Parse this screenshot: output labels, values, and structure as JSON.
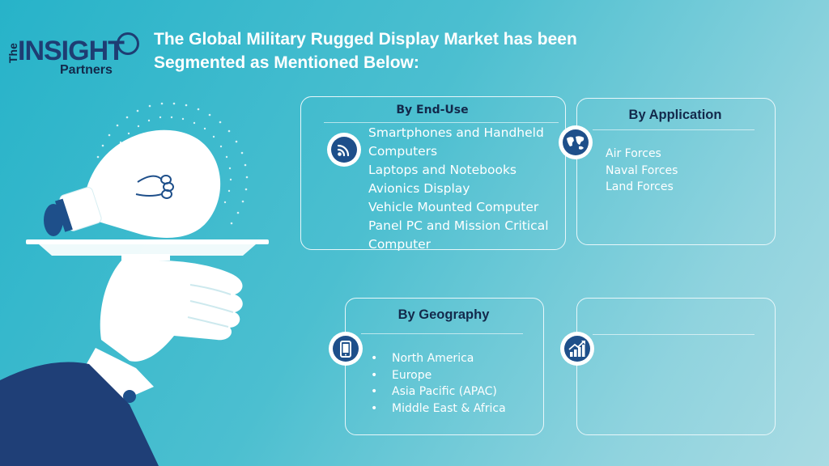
{
  "logo": {
    "the": "The",
    "insight": "INSIGHT",
    "partners": "Partners"
  },
  "title": "The Global Military Rugged Display Market has been Segmented as Mentioned Below:",
  "cards": {
    "end_use": {
      "heading": "By End-Use",
      "icon": "wifi-signal-icon",
      "items": [
        "Smartphones and Handheld Computers",
        "Laptops and Notebooks",
        "Avionics Display",
        "Vehicle Mounted Computer",
        "Panel PC and Mission Critical Computer"
      ]
    },
    "application": {
      "heading": "By Application",
      "icon": "globe-map-icon",
      "items": [
        "Air Forces",
        "Naval Forces",
        "Land Forces"
      ]
    },
    "geography": {
      "heading": "By Geography",
      "icon": "mobile-phone-icon",
      "items": [
        "North America",
        "Europe",
        "Asia Pacific (APAC)",
        "Middle East & Africa"
      ]
    },
    "blank": {
      "icon": "growth-chart-icon"
    }
  },
  "colors": {
    "navy": "#1e4f8a",
    "dark_navy": "#13294b",
    "sleeve": "#1f3f77"
  }
}
